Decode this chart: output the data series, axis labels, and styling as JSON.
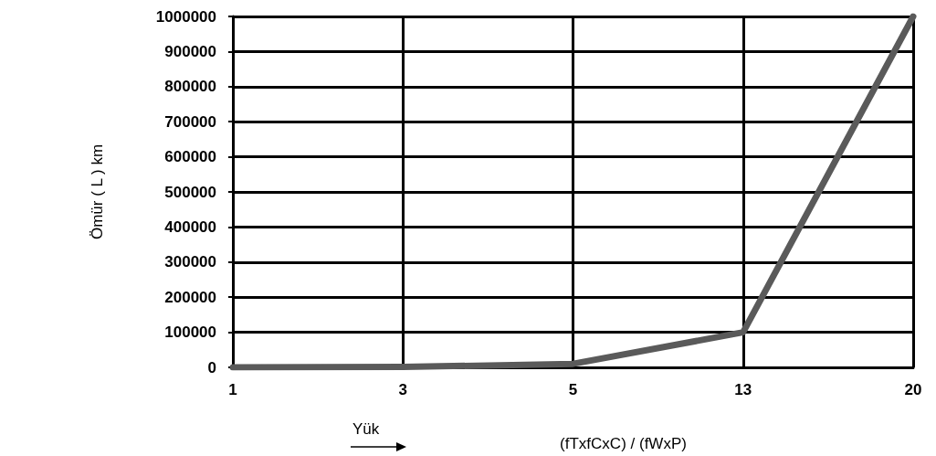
{
  "chart_data": {
    "type": "line",
    "categories": [
      "1",
      "3",
      "5",
      "13",
      "20"
    ],
    "series": [
      {
        "color": "#5a5a5a",
        "values": [
          0,
          1000,
          10000,
          100000,
          1000000
        ]
      }
    ],
    "ylabel": "Ömür ( L ) km",
    "xlabel": "(fTxfCxC) / (fWxP)",
    "annotations": [
      "Yük"
    ],
    "ylim": [
      0,
      1000000
    ],
    "yticks": [
      0,
      100000,
      200000,
      300000,
      400000,
      500000,
      600000,
      700000,
      800000,
      900000,
      1000000
    ],
    "grid": true,
    "line_style": "solid"
  }
}
